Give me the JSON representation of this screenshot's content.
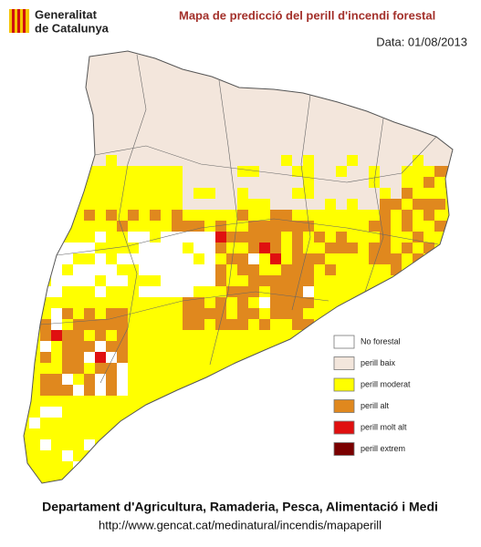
{
  "header": {
    "logo_line1": "Generalitat",
    "logo_line2": "de Catalunya",
    "title": "Mapa de predicció del perill d'incendi forestal",
    "date": "Data: 01/08/2013"
  },
  "legend": {
    "items": [
      {
        "label": "No forestal",
        "color": "#ffffff"
      },
      {
        "label": "perill baix",
        "color": "#f3e6dc"
      },
      {
        "label": "perill moderat",
        "color": "#ffff00"
      },
      {
        "label": "perill alt",
        "color": "#e0881e"
      },
      {
        "label": "perill molt alt",
        "color": "#e01010"
      },
      {
        "label": "perill extrem",
        "color": "#7a0000"
      }
    ]
  },
  "footer": {
    "department": "Departament d'Agricultura, Ramaderia, Pesca, Alimentació i Medi",
    "url": "http://www.gencat.cat/medinatural/incendis/mapaperill"
  }
}
